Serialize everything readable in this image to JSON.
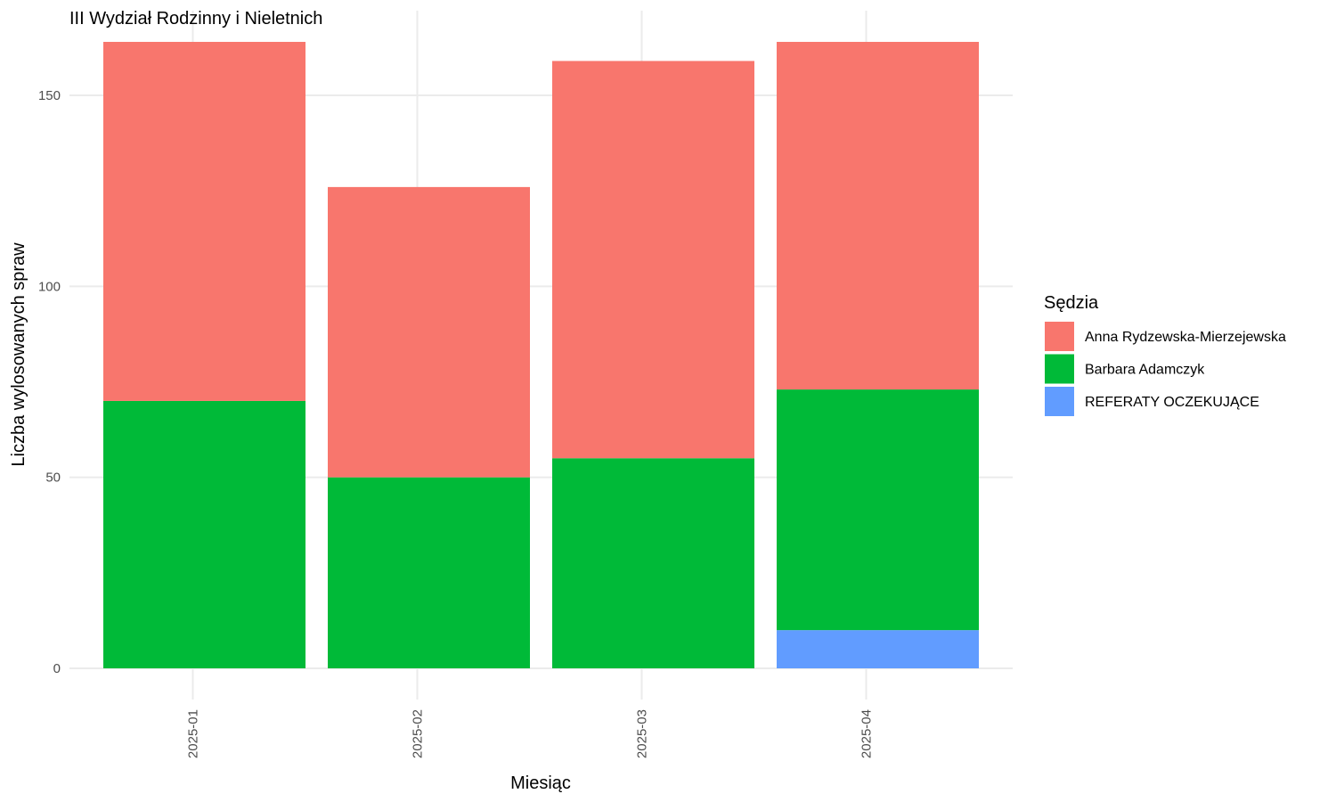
{
  "chart_data": {
    "type": "bar",
    "stacked": true,
    "title": "III Wydział Rodzinny i Nieletnich",
    "xlabel": "Miesiąc",
    "ylabel": "Liczba wylosowanych spraw",
    "categories": [
      "2025-01",
      "2025-02",
      "2025-03",
      "2025-04"
    ],
    "ylim": [
      0,
      164
    ],
    "yticks": [
      0,
      50,
      100,
      150
    ],
    "grid": true,
    "legend": {
      "title": "Sędzia",
      "position": "right"
    },
    "series": [
      {
        "name": "REFERATY OCZEKUJĄCE",
        "color": "#619CFF",
        "values": [
          0,
          0,
          0,
          10
        ]
      },
      {
        "name": "Barbara Adamczyk",
        "color": "#00BA38",
        "values": [
          70,
          50,
          55,
          63
        ]
      },
      {
        "name": "Anna Rydzewska-Mierzejewska",
        "color": "#F8766D",
        "values": [
          94,
          76,
          104,
          91
        ]
      }
    ],
    "legend_order": [
      "Anna Rydzewska-Mierzejewska",
      "Barbara Adamczyk",
      "REFERATY OCZEKUJĄCE"
    ]
  }
}
